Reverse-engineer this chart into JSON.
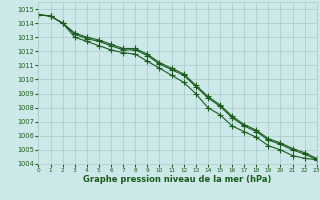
{
  "xlabel": "Graphe pression niveau de la mer (hPa)",
  "ylabel": "",
  "xlim": [
    0,
    23
  ],
  "ylim": [
    1004,
    1015.5
  ],
  "yticks": [
    1004,
    1005,
    1006,
    1007,
    1008,
    1009,
    1010,
    1011,
    1012,
    1013,
    1014,
    1015
  ],
  "xticks": [
    0,
    1,
    2,
    3,
    4,
    5,
    6,
    7,
    8,
    9,
    10,
    11,
    12,
    13,
    14,
    15,
    16,
    17,
    18,
    19,
    20,
    21,
    22,
    23
  ],
  "bg_color": "#cce8e8",
  "grid_color": "#aacccc",
  "line_color": "#1a5c1a",
  "line1": [
    1014.6,
    1014.5,
    1014.0,
    1013.3,
    1013.0,
    1012.8,
    1012.5,
    1012.2,
    1012.2,
    1011.8,
    1011.2,
    1010.8,
    1010.4,
    1009.6,
    1008.8,
    1008.2,
    1007.4,
    1006.8,
    1006.4,
    1005.8,
    1005.5,
    1005.1,
    1004.8,
    1004.4
  ],
  "line2": [
    1014.6,
    1014.5,
    1014.0,
    1013.2,
    1012.9,
    1012.7,
    1012.4,
    1012.1,
    1012.1,
    1011.7,
    1011.1,
    1010.7,
    1010.3,
    1009.5,
    1008.7,
    1008.1,
    1007.3,
    1006.7,
    1006.3,
    1005.7,
    1005.4,
    1005.0,
    1004.7,
    1004.3
  ],
  "line3": [
    1014.6,
    1014.5,
    1014.0,
    1013.0,
    1012.7,
    1012.4,
    1012.1,
    1011.9,
    1011.8,
    1011.3,
    1010.8,
    1010.3,
    1009.8,
    1009.0,
    1008.0,
    1007.5,
    1006.7,
    1006.3,
    1005.9,
    1005.3,
    1005.0,
    1004.6,
    1004.4,
    1004.3
  ],
  "marker": "+",
  "markersize": 4,
  "linewidth": 0.8
}
